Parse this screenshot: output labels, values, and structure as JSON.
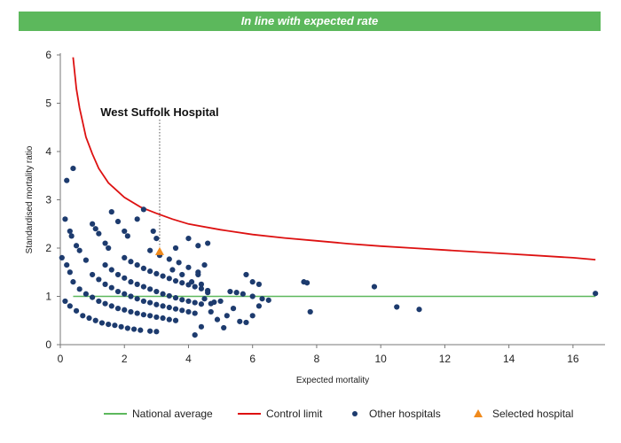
{
  "header": {
    "banner": "In line with expected rate"
  },
  "colors": {
    "banner": "#5cb85c",
    "national": "#5cb85c",
    "control": "#dd1111",
    "other": "#1d3b6e",
    "selected": "#f08a1c"
  },
  "chart_data": {
    "type": "scatter",
    "xlabel": "Expected mortality",
    "ylabel": "Standardised mortality ratio",
    "xlim": [
      0,
      17
    ],
    "ylim": [
      0,
      6
    ],
    "xticks": [
      0,
      2,
      4,
      6,
      8,
      10,
      12,
      14,
      16
    ],
    "yticks": [
      0,
      1,
      2,
      3,
      4,
      5,
      6
    ],
    "national_average": 1,
    "control_limit_curve": [
      [
        0.4,
        5.95
      ],
      [
        0.5,
        5.3
      ],
      [
        0.6,
        4.9
      ],
      [
        0.8,
        4.3
      ],
      [
        1.0,
        3.95
      ],
      [
        1.2,
        3.65
      ],
      [
        1.5,
        3.35
      ],
      [
        2.0,
        3.05
      ],
      [
        2.5,
        2.85
      ],
      [
        3.0,
        2.72
      ],
      [
        3.5,
        2.6
      ],
      [
        4.0,
        2.5
      ],
      [
        5.0,
        2.38
      ],
      [
        6.0,
        2.28
      ],
      [
        7.0,
        2.21
      ],
      [
        8.0,
        2.15
      ],
      [
        9.0,
        2.09
      ],
      [
        10.0,
        2.04
      ],
      [
        11.0,
        2.0
      ],
      [
        12.0,
        1.96
      ],
      [
        13.0,
        1.92
      ],
      [
        14.0,
        1.88
      ],
      [
        15.0,
        1.84
      ],
      [
        16.0,
        1.8
      ],
      [
        16.7,
        1.76
      ]
    ],
    "selected_hospital": {
      "name": "West Suffolk Hospital",
      "x": 3.1,
      "y": 1.93
    },
    "other_hospitals": [
      [
        0.05,
        1.8
      ],
      [
        0.2,
        3.4
      ],
      [
        0.4,
        3.65
      ],
      [
        0.15,
        2.6
      ],
      [
        0.3,
        2.35
      ],
      [
        0.35,
        2.25
      ],
      [
        0.2,
        1.65
      ],
      [
        0.3,
        1.5
      ],
      [
        0.5,
        2.05
      ],
      [
        0.6,
        1.95
      ],
      [
        0.8,
        1.75
      ],
      [
        1.0,
        2.5
      ],
      [
        1.1,
        2.4
      ],
      [
        1.2,
        2.3
      ],
      [
        1.4,
        2.1
      ],
      [
        1.5,
        2.0
      ],
      [
        1.6,
        2.75
      ],
      [
        1.8,
        2.55
      ],
      [
        2.0,
        2.35
      ],
      [
        2.1,
        2.25
      ],
      [
        2.4,
        2.6
      ],
      [
        2.6,
        2.8
      ],
      [
        2.9,
        2.35
      ],
      [
        3.0,
        2.2
      ],
      [
        3.6,
        2.0
      ],
      [
        4.0,
        2.2
      ],
      [
        4.3,
        2.05
      ],
      [
        4.6,
        2.1
      ],
      [
        4.5,
        1.65
      ],
      [
        4.3,
        1.45
      ],
      [
        5.8,
        1.45
      ],
      [
        6.0,
        1.3
      ],
      [
        6.2,
        1.25
      ],
      [
        7.6,
        1.3
      ],
      [
        7.7,
        1.28
      ],
      [
        7.8,
        0.68
      ],
      [
        9.8,
        1.2
      ],
      [
        10.5,
        0.78
      ],
      [
        11.2,
        0.73
      ],
      [
        16.7,
        1.06
      ],
      [
        5.3,
        1.1
      ],
      [
        5.5,
        1.08
      ],
      [
        5.7,
        1.05
      ],
      [
        6.0,
        1.0
      ],
      [
        6.3,
        0.95
      ],
      [
        6.5,
        0.92
      ],
      [
        6.2,
        0.8
      ],
      [
        6.0,
        0.6
      ],
      [
        5.6,
        0.48
      ],
      [
        5.8,
        0.46
      ],
      [
        5.4,
        0.75
      ],
      [
        5.2,
        0.6
      ],
      [
        4.9,
        0.52
      ],
      [
        5.1,
        0.35
      ],
      [
        4.2,
        0.2
      ],
      [
        4.4,
        0.37
      ],
      [
        4.7,
        0.68
      ],
      [
        4.8,
        0.88
      ],
      [
        0.15,
        0.9
      ],
      [
        0.3,
        0.8
      ],
      [
        0.5,
        0.7
      ],
      [
        0.7,
        0.6
      ],
      [
        0.9,
        0.55
      ],
      [
        1.1,
        0.5
      ],
      [
        1.3,
        0.45
      ],
      [
        1.5,
        0.42
      ],
      [
        1.7,
        0.4
      ],
      [
        1.9,
        0.37
      ],
      [
        2.1,
        0.34
      ],
      [
        2.3,
        0.32
      ],
      [
        2.5,
        0.3
      ],
      [
        2.8,
        0.28
      ],
      [
        3.0,
        0.27
      ],
      [
        0.4,
        1.3
      ],
      [
        0.6,
        1.15
      ],
      [
        0.8,
        1.05
      ],
      [
        1.0,
        0.98
      ],
      [
        1.2,
        0.9
      ],
      [
        1.4,
        0.85
      ],
      [
        1.6,
        0.8
      ],
      [
        1.8,
        0.75
      ],
      [
        2.0,
        0.72
      ],
      [
        2.2,
        0.68
      ],
      [
        2.4,
        0.65
      ],
      [
        2.6,
        0.62
      ],
      [
        2.8,
        0.6
      ],
      [
        3.0,
        0.57
      ],
      [
        3.2,
        0.55
      ],
      [
        3.4,
        0.52
      ],
      [
        3.6,
        0.5
      ],
      [
        1.0,
        1.45
      ],
      [
        1.2,
        1.35
      ],
      [
        1.4,
        1.25
      ],
      [
        1.6,
        1.18
      ],
      [
        1.8,
        1.1
      ],
      [
        2.0,
        1.05
      ],
      [
        2.2,
        1.0
      ],
      [
        2.4,
        0.95
      ],
      [
        2.6,
        0.9
      ],
      [
        2.8,
        0.87
      ],
      [
        3.0,
        0.83
      ],
      [
        3.2,
        0.8
      ],
      [
        3.4,
        0.77
      ],
      [
        3.6,
        0.74
      ],
      [
        3.8,
        0.71
      ],
      [
        4.0,
        0.68
      ],
      [
        4.2,
        0.65
      ],
      [
        1.4,
        1.65
      ],
      [
        1.6,
        1.55
      ],
      [
        1.8,
        1.45
      ],
      [
        2.0,
        1.38
      ],
      [
        2.2,
        1.3
      ],
      [
        2.4,
        1.25
      ],
      [
        2.6,
        1.2
      ],
      [
        2.8,
        1.15
      ],
      [
        3.0,
        1.1
      ],
      [
        3.2,
        1.05
      ],
      [
        3.4,
        1.01
      ],
      [
        3.6,
        0.97
      ],
      [
        3.8,
        0.93
      ],
      [
        4.0,
        0.9
      ],
      [
        4.2,
        0.87
      ],
      [
        4.4,
        0.84
      ],
      [
        2.0,
        1.8
      ],
      [
        2.2,
        1.72
      ],
      [
        2.4,
        1.65
      ],
      [
        2.6,
        1.58
      ],
      [
        2.8,
        1.52
      ],
      [
        3.0,
        1.47
      ],
      [
        3.2,
        1.42
      ],
      [
        3.4,
        1.37
      ],
      [
        3.6,
        1.32
      ],
      [
        3.8,
        1.28
      ],
      [
        4.0,
        1.24
      ],
      [
        4.2,
        1.2
      ],
      [
        4.4,
        1.16
      ],
      [
        4.6,
        1.12
      ],
      [
        2.8,
        1.95
      ],
      [
        3.1,
        1.85
      ],
      [
        3.4,
        1.77
      ],
      [
        3.7,
        1.7
      ],
      [
        4.0,
        1.6
      ],
      [
        4.3,
        1.5
      ],
      [
        3.5,
        1.55
      ],
      [
        3.8,
        1.45
      ],
      [
        4.1,
        1.3
      ],
      [
        4.4,
        1.25
      ],
      [
        4.6,
        1.08
      ],
      [
        4.5,
        0.95
      ],
      [
        4.7,
        0.85
      ],
      [
        5.0,
        0.9
      ]
    ],
    "legend": {
      "position": "bottom",
      "items": [
        {
          "label": "National average",
          "kind": "line",
          "color": "#5cb85c"
        },
        {
          "label": "Control limit",
          "kind": "line",
          "color": "#dd1111"
        },
        {
          "label": "Other hospitals",
          "kind": "circle",
          "color": "#1d3b6e"
        },
        {
          "label": "Selected hospital",
          "kind": "triangle",
          "color": "#f08a1c"
        }
      ]
    }
  }
}
